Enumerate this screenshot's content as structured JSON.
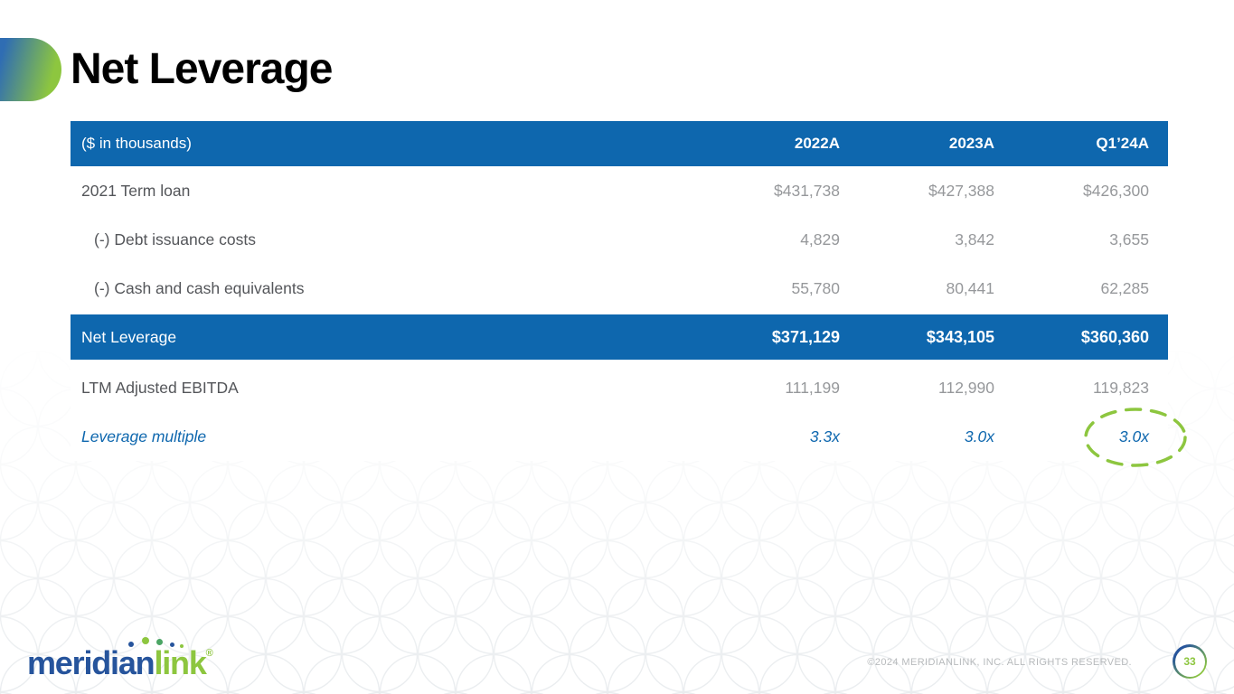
{
  "slide": {
    "title": "Net Leverage"
  },
  "colors": {
    "brand_blue": "#0e67ae",
    "brand_blue_deep": "#2f6db3",
    "brand_green": "#8dc63f",
    "dot_green": "#4ba564",
    "logo_blue": "#26549c",
    "label_gray": "#54565a",
    "value_gray": "#96989b",
    "copyright_gray": "#b7babc",
    "ellipse_green": "#8dc63f"
  },
  "table": {
    "unit_label": "($ in thousands)",
    "columns": [
      "2022A",
      "2023A",
      "Q1’24A"
    ],
    "rows": [
      {
        "label": "2021 Term loan",
        "values": [
          "$431,738",
          "$427,388",
          "$426,300"
        ],
        "indent": false,
        "style": "normal"
      },
      {
        "label": "(-) Debt issuance costs",
        "values": [
          "4,829",
          "3,842",
          "3,655"
        ],
        "indent": true,
        "style": "normal"
      },
      {
        "label": "(-) Cash and cash equivalents",
        "values": [
          "55,780",
          "80,441",
          "62,285"
        ],
        "indent": true,
        "style": "normal"
      },
      {
        "label": "Net Leverage",
        "values": [
          "$371,129",
          "$343,105",
          "$360,360"
        ],
        "indent": false,
        "style": "highlight"
      },
      {
        "label": "LTM Adjusted EBITDA",
        "values": [
          "111,199",
          "112,990",
          "119,823"
        ],
        "indent": false,
        "style": "normal"
      },
      {
        "label": "Leverage multiple",
        "values": [
          "3.3x",
          "3.0x",
          "3.0x"
        ],
        "indent": false,
        "style": "multiple",
        "annotation": "dashed-ellipse-on-last-value"
      }
    ]
  },
  "footer": {
    "logo": {
      "text_primary": "meridian",
      "text_secondary": "link",
      "registered_mark": "®"
    },
    "copyright": "©2024 MERIDIANLINK, INC. ALL RIGHTS RESERVED.",
    "page_number": "33"
  }
}
